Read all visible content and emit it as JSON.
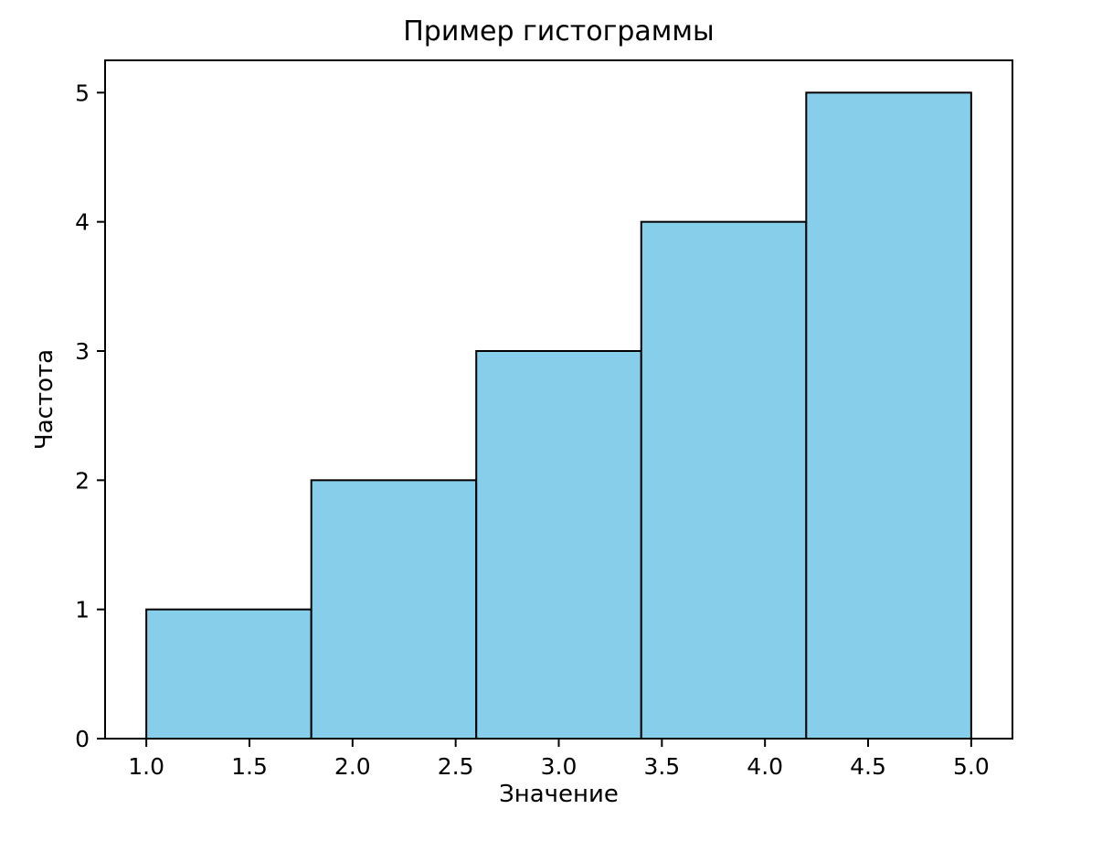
{
  "chart_data": {
    "type": "bar",
    "subtype": "histogram",
    "title": "Пример гистограммы",
    "xlabel": "Значение",
    "ylabel": "Частота",
    "bin_edges": [
      1.0,
      1.8,
      2.6,
      3.4,
      4.2,
      5.0
    ],
    "counts": [
      1,
      2,
      3,
      4,
      5
    ],
    "xlim": [
      0.8,
      5.2
    ],
    "ylim": [
      0,
      5.25
    ],
    "xticks": [
      1.0,
      1.5,
      2.0,
      2.5,
      3.0,
      3.5,
      4.0,
      4.5,
      5.0
    ],
    "xtick_labels": [
      "1.0",
      "1.5",
      "2.0",
      "2.5",
      "3.0",
      "3.5",
      "4.0",
      "4.5",
      "5.0"
    ],
    "yticks": [
      0,
      1,
      2,
      3,
      4,
      5
    ],
    "ytick_labels": [
      "0",
      "1",
      "2",
      "3",
      "4",
      "5"
    ],
    "bar_color": "#87CEEB",
    "bar_edge_color": "#000000",
    "axis_color": "#000000",
    "text_color": "#000000",
    "grid": false,
    "legend": "none"
  }
}
